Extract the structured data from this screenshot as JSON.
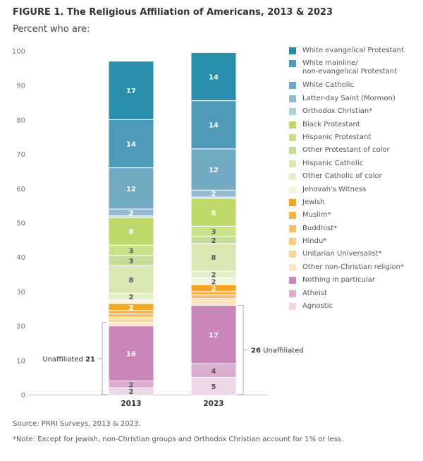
{
  "title": "FIGURE 1.  The Religious Affiliation of Americans, 2013 & 2023",
  "subtitle": "Percent who are:",
  "source": "Source: PRRI Surveys, 2013 & 2023.",
  "note": "*Note: Except for Jewish, non-Christian groups and Orthodox Christian account for 1% or less.",
  "chart_data": {
    "type": "stacked-bar",
    "categories": [
      "2013",
      "2023"
    ],
    "ylim": [
      0,
      100
    ],
    "yticks": [
      0,
      10,
      20,
      30,
      40,
      50,
      60,
      70,
      80,
      90,
      100
    ],
    "legend_position": "right",
    "series": [
      {
        "name": "White evangelical Protestant",
        "color": "#2a8fad",
        "values": [
          17,
          14
        ],
        "labels": [
          "17",
          "14"
        ],
        "light": true
      },
      {
        "name": "White mainline/\nnon-evangelical Protestant",
        "color": "#4f9ab8",
        "values": [
          14,
          14
        ],
        "labels": [
          "14",
          "14"
        ],
        "light": true
      },
      {
        "name": "White Catholic",
        "color": "#72a9c3",
        "values": [
          12,
          12
        ],
        "labels": [
          "12",
          "12"
        ],
        "light": true
      },
      {
        "name": "Latter-day Saint (Mormon)",
        "color": "#93bad0",
        "values": [
          2,
          2
        ],
        "labels": [
          "2",
          "2"
        ],
        "light": true
      },
      {
        "name": "Orthodox Christian*",
        "color": "#b3cedd",
        "values": [
          0.5,
          0.5
        ],
        "labels": [
          "",
          ""
        ]
      },
      {
        "name": "Black Protestant",
        "color": "#bfd86a",
        "values": [
          8,
          8
        ],
        "labels": [
          "8",
          "8"
        ],
        "light": true
      },
      {
        "name": "Hispanic Protestant",
        "color": "#cbe08b",
        "values": [
          3,
          3
        ],
        "labels": [
          "3",
          "3"
        ]
      },
      {
        "name": "Other Protestant of color",
        "color": "#c6dd98",
        "values": [
          3,
          2
        ],
        "labels": [
          "3",
          "2"
        ]
      },
      {
        "name": "Hispanic Catholic",
        "color": "#d9e8b2",
        "values": [
          8,
          8
        ],
        "labels": [
          "8",
          "8"
        ]
      },
      {
        "name": "Other Catholic of color",
        "color": "#e4efca",
        "values": [
          2,
          2
        ],
        "labels": [
          "2",
          "2"
        ]
      },
      {
        "name": "Jehovah's Witness",
        "color": "#f1f6e3",
        "values": [
          1,
          2
        ],
        "labels": [
          "",
          "2"
        ]
      },
      {
        "name": "Jewish",
        "color": "#f5a623",
        "values": [
          2,
          2
        ],
        "labels": [
          "2",
          "2"
        ],
        "light": true
      },
      {
        "name": "Muslim*",
        "color": "#f7b24a",
        "values": [
          1,
          1
        ],
        "labels": [
          "",
          ""
        ]
      },
      {
        "name": "Buddhist*",
        "color": "#f9bf66",
        "values": [
          1,
          1
        ],
        "labels": [
          "",
          ""
        ]
      },
      {
        "name": "Hindu*",
        "color": "#facb82",
        "values": [
          0.5,
          0.5
        ],
        "labels": [
          "",
          ""
        ]
      },
      {
        "name": "Unitarian Universalist*",
        "color": "#fbd7a0",
        "values": [
          1,
          0.5
        ],
        "labels": [
          "",
          ""
        ]
      },
      {
        "name": "Other non-Christian religion*",
        "color": "#fde4c3",
        "values": [
          1,
          1
        ],
        "labels": [
          "",
          ""
        ]
      },
      {
        "name": "Nothing in particular",
        "color": "#c886b9",
        "values": [
          16,
          17
        ],
        "labels": [
          "16",
          "17"
        ],
        "light": true
      },
      {
        "name": "Atheist",
        "color": "#dbaed0",
        "values": [
          2,
          4
        ],
        "labels": [
          "2",
          "4"
        ]
      },
      {
        "name": "Agnostic",
        "color": "#ecd6e7",
        "values": [
          2,
          5
        ],
        "labels": [
          "2",
          "5"
        ]
      }
    ],
    "annotations": {
      "left": {
        "label": "Unaffiliated",
        "value": "21"
      },
      "right": {
        "label": "Unaffiliated",
        "value": "26"
      }
    }
  }
}
